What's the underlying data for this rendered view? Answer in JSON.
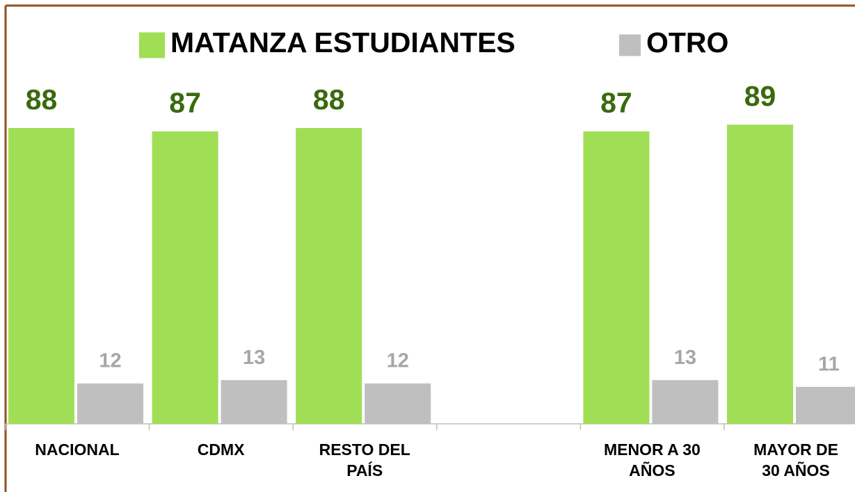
{
  "chart_data": {
    "type": "bar",
    "categories": [
      "NACIONAL",
      "CDMX",
      "RESTO DEL\nPAÍS",
      null,
      "MENOR A 30\nAÑOS",
      "MAYOR DE\n30 AÑOS"
    ],
    "series": [
      {
        "name": "MATANZA ESTUDIANTES",
        "color": "#a0de56",
        "label_color": "#3a6a0c",
        "values": [
          88,
          87,
          88,
          null,
          87,
          89
        ]
      },
      {
        "name": "OTRO",
        "color": "#bfbfbf",
        "label_color": "#a6a6a6",
        "values": [
          12,
          13,
          12,
          null,
          13,
          11
        ]
      }
    ],
    "legend": "top"
  }
}
